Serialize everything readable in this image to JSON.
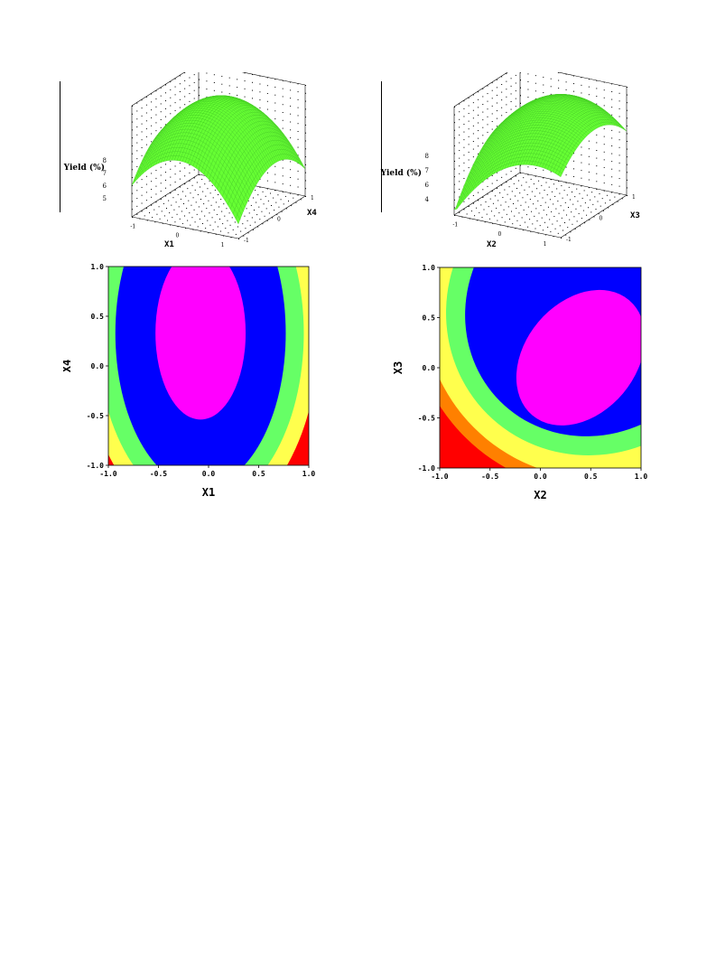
{
  "chart_data": [
    {
      "type": "surface",
      "zlabel": "Yield (%)",
      "xlabel": "X1",
      "ylabel": "X4",
      "z_ticks": [
        "5",
        "6",
        "7",
        "8"
      ],
      "x_ticks": [
        "-1",
        "0",
        "1"
      ],
      "y_ticks": [
        "-1",
        "0",
        "1"
      ],
      "xlim": [
        -1,
        1
      ],
      "ylim": [
        -1,
        1
      ],
      "surface_color": "#66ff33",
      "grid": true
    },
    {
      "type": "surface",
      "zlabel": "Yield (%)",
      "xlabel": "X2",
      "ylabel": "X3",
      "z_ticks": [
        "4",
        "6",
        "7",
        "8"
      ],
      "x_ticks": [
        "-1",
        "0",
        "1"
      ],
      "y_ticks": [
        "-1",
        "0",
        "1"
      ],
      "xlim": [
        -1,
        1
      ],
      "ylim": [
        -1,
        1
      ],
      "surface_color": "#66ff33",
      "grid": true
    },
    {
      "type": "contour",
      "xlabel": "X1",
      "ylabel": "X4",
      "xlim": [
        -1,
        1
      ],
      "ylim": [
        -1,
        1
      ],
      "x_ticks": [
        "-1.0",
        "-0.5",
        "0.0",
        "0.5",
        "1.0"
      ],
      "y_ticks": [
        "-1.0",
        "-0.5",
        "0.0",
        "0.5",
        "1.0"
      ],
      "regions": [
        {
          "color": "#ff00ff",
          "shape": "ellipse",
          "center": [
            -0.08,
            0.33
          ],
          "radii": [
            0.45,
            0.87
          ]
        },
        {
          "color": "#0000ff",
          "shape": "ellipse",
          "center": [
            -0.08,
            0.33
          ],
          "radii": [
            0.85,
            1.55
          ]
        },
        {
          "color": "#66ff66",
          "shape": "ellipse",
          "center": [
            -0.08,
            0.33
          ],
          "radii": [
            1.03,
            1.75
          ]
        },
        {
          "color": "#ffff4d",
          "shape": "ellipse",
          "center": [
            -0.08,
            0.33
          ],
          "radii": [
            1.18,
            1.95
          ]
        }
      ],
      "corner_color": "#ff0000"
    },
    {
      "type": "contour",
      "xlabel": "X2",
      "ylabel": "X3",
      "xlim": [
        -1,
        1
      ],
      "ylim": [
        -1,
        1
      ],
      "x_ticks": [
        "-1.0",
        "-0.5",
        "0.0",
        "0.5",
        "1.0"
      ],
      "y_ticks": [
        "-1.0",
        "-0.5",
        "0.0",
        "0.5",
        "1.0"
      ],
      "regions": [
        {
          "color": "#ff8000",
          "shape": "ellipse",
          "center": [
            0.55,
            0.62
          ],
          "radii": [
            1.85,
            1.85
          ],
          "rotation": 45
        },
        {
          "color": "#ffff4d",
          "shape": "ellipse",
          "center": [
            0.55,
            0.62
          ],
          "radii": [
            1.72,
            1.72
          ],
          "rotation": 45
        },
        {
          "color": "#66ff66",
          "shape": "ellipse",
          "center": [
            0.55,
            0.62
          ],
          "radii": [
            1.45,
            1.53
          ],
          "rotation": 45
        },
        {
          "color": "#0000ff",
          "shape": "ellipse",
          "center": [
            0.55,
            0.62
          ],
          "radii": [
            1.25,
            1.35
          ],
          "rotation": 45
        },
        {
          "color": "#ff00ff",
          "shape": "ellipse",
          "center": [
            0.4,
            0.1
          ],
          "radii": [
            0.55,
            0.75
          ],
          "rotation": 40
        }
      ],
      "corner_color": "#ff0000"
    }
  ]
}
